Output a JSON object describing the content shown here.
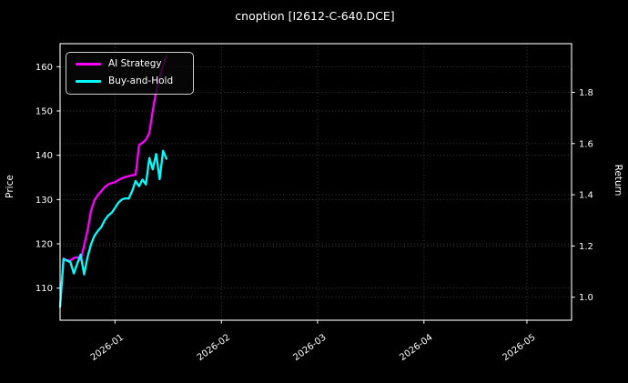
{
  "chart_data": {
    "type": "line",
    "title": "cnoption [I2612-C-640.DCE]",
    "background_color": "#000000",
    "text_color": "#ffffff",
    "grid": true,
    "grid_style": "dotted",
    "legend_position": "upper left",
    "x_axis": {
      "range": [
        "2025-12-16",
        "2026-05-14"
      ],
      "tick_rotation_deg": -36,
      "ticks": [
        {
          "label": "2026-01",
          "date": "2026-01-01"
        },
        {
          "label": "2026-02",
          "date": "2026-02-01"
        },
        {
          "label": "2026-03",
          "date": "2026-03-01"
        },
        {
          "label": "2026-04",
          "date": "2026-04-01"
        },
        {
          "label": "2026-05",
          "date": "2026-05-01"
        }
      ]
    },
    "left_axis": {
      "label": "Price",
      "range": [
        102.75,
        165.2
      ],
      "ticks": [
        "110",
        "120",
        "130",
        "140",
        "150",
        "160"
      ]
    },
    "right_axis": {
      "label": "Return",
      "range": [
        0.91,
        1.99
      ],
      "ticks": [
        "1.0",
        "1.2",
        "1.4",
        "1.6",
        "1.8"
      ]
    },
    "series": [
      {
        "name": "AI Strategy",
        "color": "#ff00ff",
        "axis": "left",
        "points": [
          [
            "2025-12-16",
            105.8
          ],
          [
            "2025-12-17",
            116.7
          ],
          [
            "2025-12-18",
            116.3
          ],
          [
            "2025-12-19",
            116.2
          ],
          [
            "2025-12-20",
            116.8
          ],
          [
            "2025-12-21",
            117.0
          ],
          [
            "2025-12-22",
            116.3
          ],
          [
            "2025-12-23",
            119.6
          ],
          [
            "2025-12-24",
            123.0
          ],
          [
            "2025-12-25",
            127.4
          ],
          [
            "2025-12-26",
            129.8
          ],
          [
            "2025-12-27",
            131.0
          ],
          [
            "2025-12-28",
            131.9
          ],
          [
            "2025-12-29",
            132.8
          ],
          [
            "2025-12-30",
            133.4
          ],
          [
            "2025-12-31",
            133.7
          ],
          [
            "2026-01-01",
            133.9
          ],
          [
            "2026-01-02",
            134.4
          ],
          [
            "2026-01-03",
            134.8
          ],
          [
            "2026-01-04",
            135.1
          ],
          [
            "2026-01-05",
            135.3
          ],
          [
            "2026-01-06",
            135.5
          ],
          [
            "2026-01-07",
            135.6
          ],
          [
            "2026-01-08",
            142.3
          ],
          [
            "2026-01-09",
            142.8
          ],
          [
            "2026-01-10",
            143.5
          ],
          [
            "2026-01-11",
            145.0
          ],
          [
            "2026-01-12",
            150.0
          ],
          [
            "2026-01-13",
            154.5
          ],
          [
            "2026-01-14",
            157.5
          ],
          [
            "2026-01-15",
            160.3
          ],
          [
            "2026-01-16",
            162.3
          ]
        ]
      },
      {
        "name": "Buy-and-Hold",
        "color": "#00ffff",
        "axis": "left",
        "points": [
          [
            "2025-12-16",
            105.8
          ],
          [
            "2025-12-17",
            116.6
          ],
          [
            "2025-12-18",
            116.2
          ],
          [
            "2025-12-19",
            115.9
          ],
          [
            "2025-12-20",
            113.3
          ],
          [
            "2025-12-21",
            115.5
          ],
          [
            "2025-12-22",
            117.6
          ],
          [
            "2025-12-23",
            113.1
          ],
          [
            "2025-12-24",
            117.0
          ],
          [
            "2025-12-25",
            119.8
          ],
          [
            "2025-12-26",
            121.8
          ],
          [
            "2025-12-27",
            122.9
          ],
          [
            "2025-12-28",
            123.8
          ],
          [
            "2025-12-29",
            125.3
          ],
          [
            "2025-12-30",
            126.4
          ],
          [
            "2025-12-31",
            127.0
          ],
          [
            "2026-01-01",
            128.1
          ],
          [
            "2026-01-02",
            129.3
          ],
          [
            "2026-01-03",
            130.0
          ],
          [
            "2026-01-04",
            130.3
          ],
          [
            "2026-01-05",
            130.2
          ],
          [
            "2026-01-06",
            131.9
          ],
          [
            "2026-01-07",
            134.2
          ],
          [
            "2026-01-08",
            133.0
          ],
          [
            "2026-01-09",
            134.5
          ],
          [
            "2026-01-10",
            133.4
          ],
          [
            "2026-01-11",
            139.4
          ],
          [
            "2026-01-12",
            136.8
          ],
          [
            "2026-01-13",
            140.3
          ],
          [
            "2026-01-14",
            134.6
          ],
          [
            "2026-01-15",
            141.0
          ],
          [
            "2026-01-16",
            139.2
          ]
        ]
      }
    ]
  }
}
